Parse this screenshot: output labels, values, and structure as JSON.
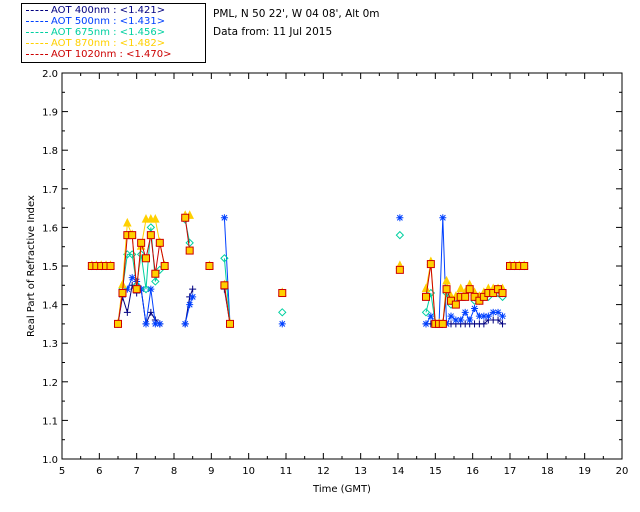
{
  "legend": [
    {
      "label": "AOT  400nm : <1.421>",
      "color": "#000080"
    },
    {
      "label": "AOT  500nm : <1.431>",
      "color": "#0040ff"
    },
    {
      "label": "AOT  675nm : <1.456>",
      "color": "#00d0a0"
    },
    {
      "label": "AOT  870nm : <1.482>",
      "color": "#ffd000"
    },
    {
      "label": "AOT 1020nm : <1.470>",
      "color": "#cc0000"
    }
  ],
  "info": {
    "site": "PML, N 50 22', W 04 08', Alt 0m",
    "date": "Data from: 11 Jul 2015"
  },
  "chart_data": {
    "type": "line",
    "xlabel": "Time (GMT)",
    "ylabel": "Real Part of Refractive Index",
    "xlim": [
      5,
      20
    ],
    "ylim": [
      1.0,
      2.0
    ],
    "xticks": [
      "5",
      "6",
      "7",
      "8",
      "9",
      "10",
      "11",
      "12",
      "13",
      "14",
      "15",
      "16",
      "17",
      "18",
      "19",
      "20"
    ],
    "yticks": [
      "1.0",
      "1.1",
      "1.2",
      "1.3",
      "1.4",
      "1.5",
      "1.6",
      "1.7",
      "1.8",
      "1.9",
      "2.0"
    ],
    "series": [
      {
        "name": "AOT  400nm : <1.421>",
        "color": "#000080",
        "marker": "plus",
        "segments": [
          [
            [
              5.8,
              1.5
            ],
            [
              5.92,
              1.5
            ],
            [
              6.05,
              1.5
            ],
            [
              6.18,
              1.5
            ],
            [
              6.3,
              1.5
            ]
          ],
          [
            [
              6.5,
              1.35
            ],
            [
              6.62,
              1.42
            ],
            [
              6.75,
              1.38
            ],
            [
              6.88,
              1.45
            ],
            [
              7.0,
              1.43
            ],
            [
              7.12,
              1.44
            ],
            [
              7.25,
              1.35
            ],
            [
              7.38,
              1.38
            ],
            [
              7.5,
              1.36
            ],
            [
              7.62,
              1.35
            ]
          ],
          [
            [
              8.3,
              1.35
            ],
            [
              8.42,
              1.42
            ],
            [
              8.5,
              1.44
            ]
          ],
          [
            [
              9.35,
              1.44
            ],
            [
              9.5,
              1.35
            ]
          ],
          [
            [
              14.75,
              1.35
            ],
            [
              14.88,
              1.35
            ],
            [
              15.0,
              1.35
            ],
            [
              15.1,
              1.35
            ],
            [
              15.2,
              1.35
            ],
            [
              15.3,
              1.35
            ],
            [
              15.42,
              1.35
            ],
            [
              15.55,
              1.35
            ],
            [
              15.68,
              1.35
            ],
            [
              15.8,
              1.35
            ],
            [
              15.92,
              1.35
            ],
            [
              16.05,
              1.35
            ],
            [
              16.18,
              1.35
            ],
            [
              16.3,
              1.35
            ],
            [
              16.42,
              1.36
            ],
            [
              16.55,
              1.36
            ],
            [
              16.68,
              1.36
            ],
            [
              16.8,
              1.35
            ]
          ],
          [
            [
              17.0,
              1.5
            ],
            [
              17.12,
              1.5
            ],
            [
              17.25,
              1.5
            ],
            [
              17.38,
              1.5
            ]
          ]
        ]
      },
      {
        "name": "AOT  500nm : <1.431>",
        "color": "#0040ff",
        "marker": "star",
        "segments": [
          [
            [
              5.8,
              1.5
            ],
            [
              5.92,
              1.5
            ],
            [
              6.05,
              1.5
            ],
            [
              6.18,
              1.5
            ],
            [
              6.3,
              1.5
            ]
          ],
          [
            [
              6.5,
              1.35
            ],
            [
              6.62,
              1.43
            ],
            [
              6.75,
              1.44
            ],
            [
              6.88,
              1.47
            ],
            [
              7.0,
              1.46
            ],
            [
              7.12,
              1.44
            ],
            [
              7.25,
              1.35
            ],
            [
              7.38,
              1.44
            ],
            [
              7.5,
              1.35
            ],
            [
              7.62,
              1.35
            ]
          ],
          [
            [
              8.3,
              1.35
            ],
            [
              8.42,
              1.4
            ],
            [
              8.5,
              1.42
            ]
          ],
          [
            [
              9.35,
              1.625
            ],
            [
              9.5,
              1.35
            ]
          ],
          [
            [
              10.9,
              1.35
            ]
          ],
          [
            [
              14.05,
              1.625
            ]
          ],
          [
            [
              14.75,
              1.35
            ],
            [
              14.88,
              1.37
            ],
            [
              15.0,
              1.35
            ],
            [
              15.1,
              1.35
            ],
            [
              15.2,
              1.625
            ],
            [
              15.3,
              1.35
            ],
            [
              15.42,
              1.37
            ],
            [
              15.55,
              1.36
            ],
            [
              15.68,
              1.36
            ],
            [
              15.8,
              1.38
            ],
            [
              15.92,
              1.36
            ],
            [
              16.05,
              1.39
            ],
            [
              16.18,
              1.37
            ],
            [
              16.3,
              1.37
            ],
            [
              16.42,
              1.37
            ],
            [
              16.55,
              1.38
            ],
            [
              16.68,
              1.38
            ],
            [
              16.8,
              1.37
            ]
          ],
          [
            [
              17.0,
              1.5
            ],
            [
              17.12,
              1.5
            ],
            [
              17.25,
              1.5
            ],
            [
              17.38,
              1.5
            ]
          ]
        ]
      },
      {
        "name": "AOT  675nm : <1.456>",
        "color": "#00d0a0",
        "marker": "diamond",
        "segments": [
          [
            [
              5.8,
              1.5
            ],
            [
              5.92,
              1.5
            ],
            [
              6.05,
              1.5
            ],
            [
              6.18,
              1.5
            ],
            [
              6.3,
              1.5
            ]
          ],
          [
            [
              6.5,
              1.35
            ],
            [
              6.62,
              1.44
            ],
            [
              6.75,
              1.53
            ],
            [
              6.88,
              1.53
            ],
            [
              7.0,
              1.45
            ],
            [
              7.12,
              1.53
            ],
            [
              7.25,
              1.44
            ],
            [
              7.38,
              1.6
            ],
            [
              7.5,
              1.46
            ],
            [
              7.62,
              1.49
            ]
          ],
          [
            [
              8.3,
              1.62
            ],
            [
              8.42,
              1.56
            ]
          ],
          [
            [
              8.95,
              1.5
            ]
          ],
          [
            [
              9.35,
              1.52
            ],
            [
              9.5,
              1.35
            ]
          ],
          [
            [
              10.9,
              1.38
            ]
          ],
          [
            [
              14.05,
              1.58
            ]
          ],
          [
            [
              14.75,
              1.38
            ],
            [
              14.88,
              1.43
            ],
            [
              15.0,
              1.35
            ],
            [
              15.1,
              1.35
            ],
            [
              15.2,
              1.35
            ],
            [
              15.3,
              1.43
            ],
            [
              15.42,
              1.4
            ],
            [
              15.55,
              1.41
            ],
            [
              15.68,
              1.42
            ],
            [
              15.8,
              1.42
            ],
            [
              15.92,
              1.44
            ],
            [
              16.05,
              1.41
            ],
            [
              16.18,
              1.41
            ],
            [
              16.3,
              1.42
            ],
            [
              16.42,
              1.42
            ],
            [
              16.55,
              1.43
            ],
            [
              16.68,
              1.43
            ],
            [
              16.8,
              1.42
            ]
          ],
          [
            [
              17.0,
              1.5
            ],
            [
              17.12,
              1.5
            ],
            [
              17.25,
              1.5
            ],
            [
              17.38,
              1.5
            ]
          ]
        ]
      },
      {
        "name": "AOT  870nm : <1.482>",
        "color": "#ffd000",
        "marker": "triangle",
        "segments": [
          [
            [
              5.8,
              1.5
            ],
            [
              5.92,
              1.5
            ],
            [
              6.05,
              1.5
            ],
            [
              6.18,
              1.5
            ],
            [
              6.3,
              1.5
            ]
          ],
          [
            [
              6.5,
              1.35
            ],
            [
              6.62,
              1.45
            ],
            [
              6.75,
              1.61
            ],
            [
              6.88,
              1.58
            ],
            [
              7.0,
              1.44
            ],
            [
              7.12,
              1.55
            ],
            [
              7.25,
              1.62
            ],
            [
              7.38,
              1.62
            ],
            [
              7.5,
              1.62
            ],
            [
              7.62,
              1.56
            ],
            [
              7.75,
              1.5
            ]
          ],
          [
            [
              8.3,
              1.63
            ],
            [
              8.42,
              1.63
            ]
          ],
          [
            [
              8.95,
              1.5
            ]
          ],
          [
            [
              9.35,
              1.45
            ],
            [
              9.5,
              1.35
            ]
          ],
          [
            [
              10.9,
              1.43
            ]
          ],
          [
            [
              14.05,
              1.5
            ]
          ],
          [
            [
              14.75,
              1.44
            ],
            [
              14.88,
              1.51
            ],
            [
              15.0,
              1.35
            ],
            [
              15.1,
              1.35
            ],
            [
              15.2,
              1.35
            ],
            [
              15.3,
              1.46
            ],
            [
              15.42,
              1.42
            ],
            [
              15.55,
              1.42
            ],
            [
              15.68,
              1.44
            ],
            [
              15.8,
              1.43
            ],
            [
              15.92,
              1.45
            ],
            [
              16.05,
              1.43
            ],
            [
              16.18,
              1.42
            ],
            [
              16.3,
              1.43
            ],
            [
              16.42,
              1.44
            ],
            [
              16.55,
              1.44
            ],
            [
              16.68,
              1.44
            ],
            [
              16.8,
              1.44
            ]
          ],
          [
            [
              17.0,
              1.5
            ],
            [
              17.12,
              1.5
            ],
            [
              17.25,
              1.5
            ],
            [
              17.38,
              1.5
            ]
          ]
        ]
      },
      {
        "name": "AOT 1020nm : <1.470>",
        "color": "#cc0000",
        "marker": "square",
        "segments": [
          [
            [
              5.8,
              1.5
            ],
            [
              5.92,
              1.5
            ],
            [
              6.05,
              1.5
            ],
            [
              6.18,
              1.5
            ],
            [
              6.3,
              1.5
            ]
          ],
          [
            [
              6.5,
              1.35
            ],
            [
              6.62,
              1.43
            ],
            [
              6.75,
              1.58
            ],
            [
              6.88,
              1.58
            ],
            [
              7.0,
              1.44
            ],
            [
              7.12,
              1.56
            ],
            [
              7.25,
              1.52
            ],
            [
              7.38,
              1.58
            ],
            [
              7.5,
              1.48
            ],
            [
              7.62,
              1.56
            ],
            [
              7.75,
              1.5
            ]
          ],
          [
            [
              8.3,
              1.625
            ],
            [
              8.42,
              1.54
            ]
          ],
          [
            [
              8.95,
              1.5
            ]
          ],
          [
            [
              9.35,
              1.45
            ],
            [
              9.5,
              1.35
            ]
          ],
          [
            [
              10.9,
              1.43
            ]
          ],
          [
            [
              14.05,
              1.49
            ]
          ],
          [
            [
              14.75,
              1.42
            ],
            [
              14.88,
              1.505
            ],
            [
              15.0,
              1.35
            ],
            [
              15.1,
              1.35
            ],
            [
              15.2,
              1.35
            ],
            [
              15.3,
              1.44
            ],
            [
              15.42,
              1.41
            ],
            [
              15.55,
              1.4
            ],
            [
              15.68,
              1.42
            ],
            [
              15.8,
              1.42
            ],
            [
              15.92,
              1.44
            ],
            [
              16.05,
              1.42
            ],
            [
              16.18,
              1.41
            ],
            [
              16.3,
              1.42
            ],
            [
              16.42,
              1.43
            ],
            [
              16.55,
              1.43
            ],
            [
              16.68,
              1.44
            ],
            [
              16.8,
              1.43
            ]
          ],
          [
            [
              17.0,
              1.5
            ],
            [
              17.12,
              1.5
            ],
            [
              17.25,
              1.5
            ],
            [
              17.38,
              1.5
            ]
          ]
        ]
      }
    ]
  }
}
